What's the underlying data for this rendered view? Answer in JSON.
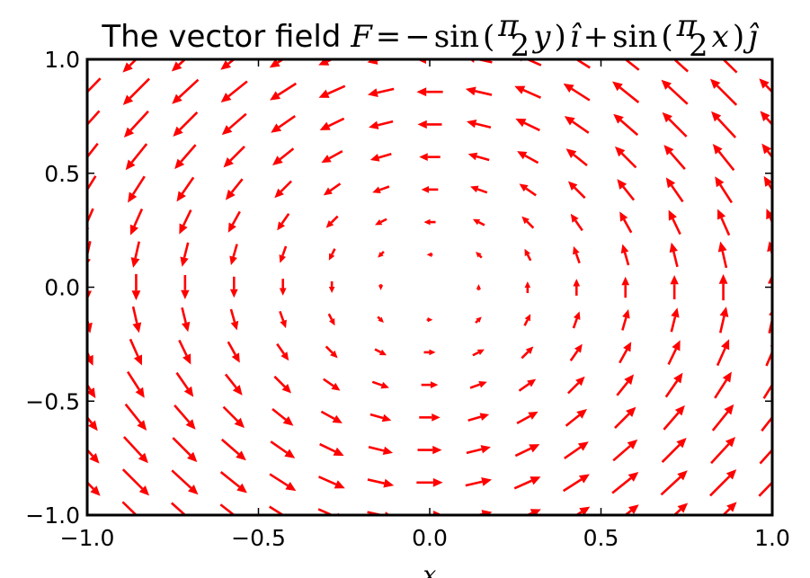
{
  "chart_data": {
    "type": "quiver",
    "title": "The vector field ",
    "title_math": {
      "field": "F",
      "eq": "=",
      "minus": "−",
      "sin": "sin",
      "open": "(",
      "pi": "π",
      "two": "2",
      "y": "y",
      "close": ")",
      "i": "î",
      "plus": "+",
      "x": "x",
      "j": "ĵ"
    },
    "xlabel": "x",
    "ylabel": "",
    "xlim": [
      -1.0,
      1.0
    ],
    "ylim": [
      -1.0,
      1.0
    ],
    "xticks": [
      -1.0,
      -0.5,
      0.0,
      0.5,
      1.0
    ],
    "yticks": [
      -1.0,
      -0.5,
      0.0,
      0.5,
      1.0
    ],
    "xtick_labels": [
      "−1.0",
      "−0.5",
      "0.0",
      "0.5",
      "1.0"
    ],
    "ytick_labels": [
      "−1.0",
      "−0.5",
      "0.0",
      "0.5",
      "1.0"
    ],
    "field": {
      "u": "-sin(pi/2 * y)",
      "v": "sin(pi/2 * x)",
      "grid_count": 15,
      "grid_range": [
        -1.0,
        1.0
      ]
    },
    "arrow_color": "#ff0000",
    "grid": false
  }
}
